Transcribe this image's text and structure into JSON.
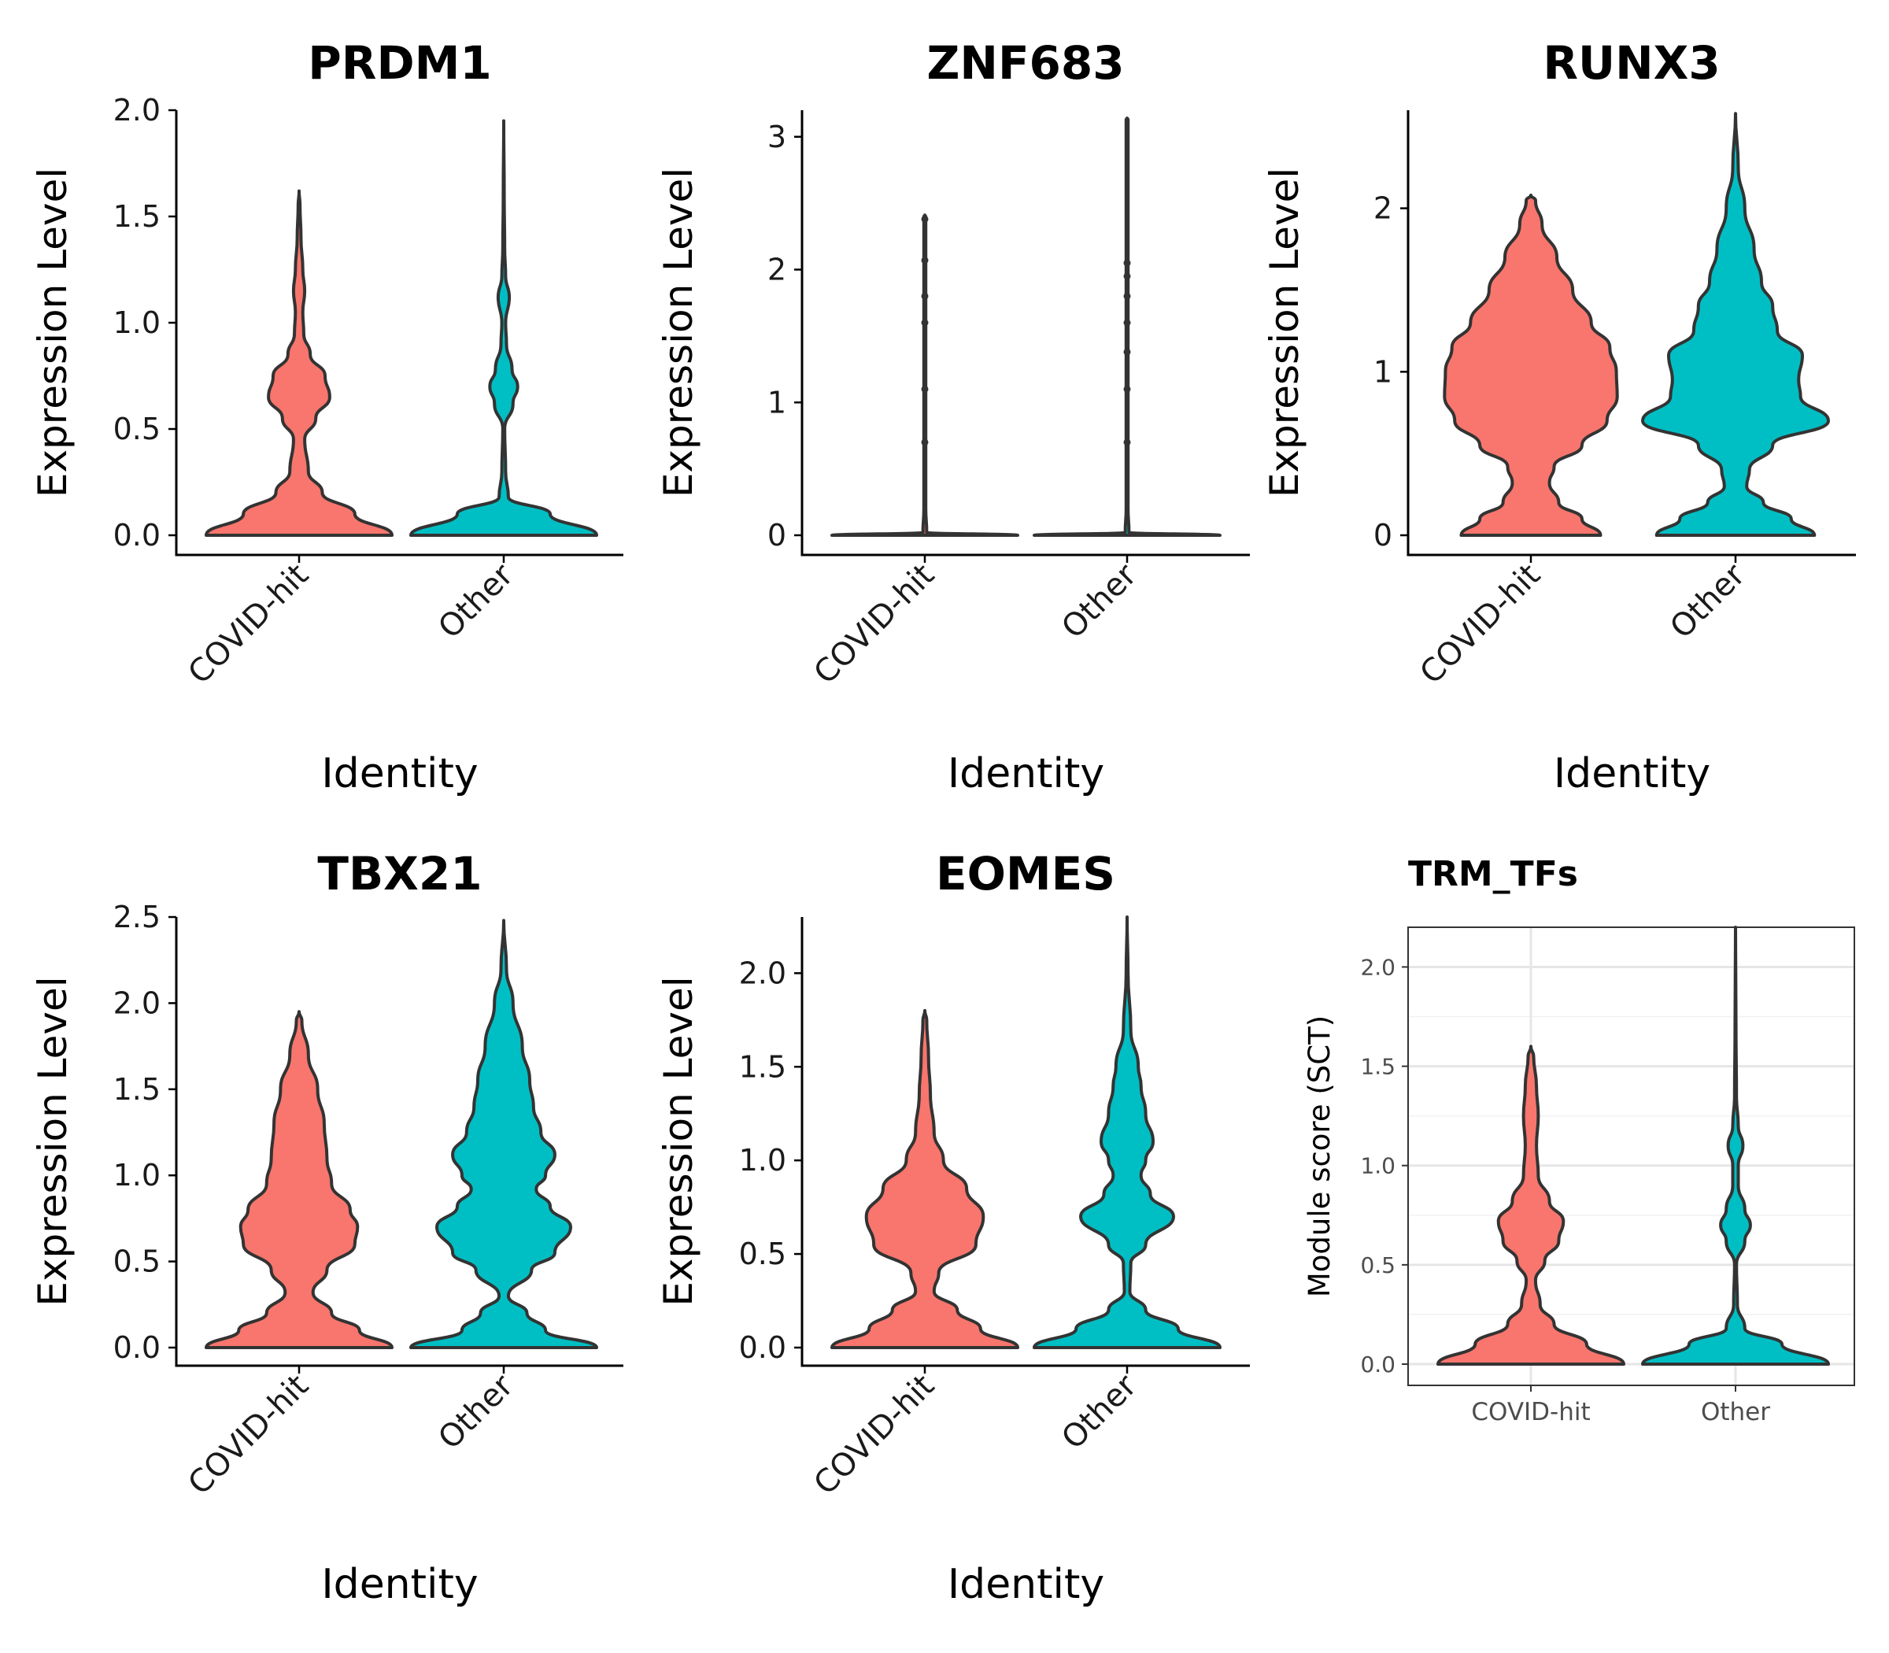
{
  "colors": {
    "covid_hit": "#F8766D",
    "other": "#00BFC4",
    "outline": "#333333"
  },
  "chart_data": [
    {
      "type": "violin",
      "title": "PRDM1",
      "xlabel": "Identity",
      "ylabel": "Expression Level",
      "ylim": [
        0,
        2.0
      ],
      "yticks": [
        "0.0",
        "0.5",
        "1.0",
        "1.5",
        "2.0"
      ],
      "categories": [
        "COVID-hit",
        "Other"
      ],
      "series": [
        {
          "category": "COVID-hit",
          "density": [
            [
              0.0,
              1.0
            ],
            [
              0.1,
              0.6
            ],
            [
              0.2,
              0.25
            ],
            [
              0.3,
              0.1
            ],
            [
              0.45,
              0.06
            ],
            [
              0.55,
              0.18
            ],
            [
              0.65,
              0.33
            ],
            [
              0.75,
              0.28
            ],
            [
              0.85,
              0.12
            ],
            [
              0.95,
              0.05
            ],
            [
              1.05,
              0.04
            ],
            [
              1.15,
              0.06
            ],
            [
              1.25,
              0.04
            ],
            [
              1.4,
              0.02
            ],
            [
              1.55,
              0.01
            ],
            [
              1.62,
              0.0
            ]
          ]
        },
        {
          "category": "Other",
          "density": [
            [
              0.0,
              1.0
            ],
            [
              0.1,
              0.5
            ],
            [
              0.18,
              0.05
            ],
            [
              0.3,
              0.02
            ],
            [
              0.5,
              0.01
            ],
            [
              0.62,
              0.1
            ],
            [
              0.7,
              0.15
            ],
            [
              0.78,
              0.09
            ],
            [
              0.9,
              0.03
            ],
            [
              1.0,
              0.02
            ],
            [
              1.12,
              0.06
            ],
            [
              1.22,
              0.02
            ],
            [
              1.35,
              0.01
            ],
            [
              1.6,
              0.005
            ],
            [
              1.95,
              0.0
            ]
          ]
        }
      ]
    },
    {
      "type": "violin",
      "title": "ZNF683",
      "xlabel": "Identity",
      "ylabel": "Expression Level",
      "ylim": [
        0,
        3.2
      ],
      "yticks": [
        "0",
        "1",
        "2",
        "3"
      ],
      "categories": [
        "COVID-hit",
        "Other"
      ],
      "series": [
        {
          "category": "COVID-hit",
          "density": [
            [
              0.0,
              1.0
            ],
            [
              0.02,
              0.02
            ],
            [
              0.2,
              0.01
            ],
            [
              2.4,
              0.01
            ],
            [
              2.41,
              0.0
            ]
          ]
        },
        {
          "category": "Other",
          "density": [
            [
              0.0,
              1.0
            ],
            [
              0.02,
              0.02
            ],
            [
              0.2,
              0.01
            ],
            [
              3.13,
              0.01
            ],
            [
              3.14,
              0.0
            ]
          ]
        }
      ]
    },
    {
      "type": "violin",
      "title": "RUNX3",
      "xlabel": "Identity",
      "ylabel": "Expression Level",
      "ylim": [
        0,
        2.6
      ],
      "yticks": [
        "0",
        "1",
        "2"
      ],
      "categories": [
        "COVID-hit",
        "Other"
      ],
      "series": [
        {
          "category": "COVID-hit",
          "density": [
            [
              0.0,
              0.75
            ],
            [
              0.1,
              0.55
            ],
            [
              0.2,
              0.3
            ],
            [
              0.32,
              0.2
            ],
            [
              0.42,
              0.25
            ],
            [
              0.55,
              0.55
            ],
            [
              0.7,
              0.82
            ],
            [
              0.85,
              0.93
            ],
            [
              1.0,
              0.92
            ],
            [
              1.15,
              0.85
            ],
            [
              1.3,
              0.65
            ],
            [
              1.5,
              0.45
            ],
            [
              1.7,
              0.28
            ],
            [
              1.9,
              0.12
            ],
            [
              2.05,
              0.05
            ],
            [
              2.08,
              0.0
            ]
          ]
        },
        {
          "category": "Other",
          "density": [
            [
              0.0,
              0.85
            ],
            [
              0.1,
              0.6
            ],
            [
              0.2,
              0.3
            ],
            [
              0.3,
              0.12
            ],
            [
              0.4,
              0.15
            ],
            [
              0.55,
              0.4
            ],
            [
              0.7,
              1.0
            ],
            [
              0.85,
              0.7
            ],
            [
              0.95,
              0.68
            ],
            [
              1.1,
              0.72
            ],
            [
              1.25,
              0.45
            ],
            [
              1.4,
              0.4
            ],
            [
              1.55,
              0.28
            ],
            [
              1.75,
              0.2
            ],
            [
              2.0,
              0.1
            ],
            [
              2.25,
              0.03
            ],
            [
              2.58,
              0.0
            ]
          ]
        }
      ]
    },
    {
      "type": "violin",
      "title": "TBX21",
      "xlabel": "Identity",
      "ylabel": "Expression Level",
      "ylim": [
        0,
        2.5
      ],
      "yticks": [
        "0.0",
        "0.5",
        "1.0",
        "1.5",
        "2.0",
        "2.5"
      ],
      "categories": [
        "COVID-hit",
        "Other"
      ],
      "series": [
        {
          "category": "COVID-hit",
          "density": [
            [
              0.0,
              1.0
            ],
            [
              0.1,
              0.65
            ],
            [
              0.2,
              0.35
            ],
            [
              0.32,
              0.15
            ],
            [
              0.45,
              0.3
            ],
            [
              0.6,
              0.6
            ],
            [
              0.7,
              0.63
            ],
            [
              0.8,
              0.55
            ],
            [
              0.95,
              0.35
            ],
            [
              1.1,
              0.3
            ],
            [
              1.3,
              0.27
            ],
            [
              1.5,
              0.2
            ],
            [
              1.7,
              0.1
            ],
            [
              1.9,
              0.03
            ],
            [
              1.95,
              0.0
            ]
          ]
        },
        {
          "category": "Other",
          "density": [
            [
              0.0,
              1.0
            ],
            [
              0.1,
              0.45
            ],
            [
              0.2,
              0.25
            ],
            [
              0.3,
              0.05
            ],
            [
              0.45,
              0.3
            ],
            [
              0.55,
              0.55
            ],
            [
              0.7,
              0.72
            ],
            [
              0.82,
              0.5
            ],
            [
              0.92,
              0.35
            ],
            [
              1.0,
              0.45
            ],
            [
              1.12,
              0.55
            ],
            [
              1.25,
              0.4
            ],
            [
              1.4,
              0.32
            ],
            [
              1.55,
              0.28
            ],
            [
              1.75,
              0.2
            ],
            [
              2.0,
              0.1
            ],
            [
              2.2,
              0.03
            ],
            [
              2.48,
              0.0
            ]
          ]
        }
      ]
    },
    {
      "type": "violin",
      "title": "EOMES",
      "xlabel": "Identity",
      "ylabel": "Expression Level",
      "ylim": [
        0,
        2.3
      ],
      "yticks": [
        "0.0",
        "0.5",
        "1.0",
        "1.5",
        "2.0"
      ],
      "categories": [
        "COVID-hit",
        "Other"
      ],
      "series": [
        {
          "category": "COVID-hit",
          "density": [
            [
              0.0,
              1.0
            ],
            [
              0.1,
              0.6
            ],
            [
              0.2,
              0.35
            ],
            [
              0.3,
              0.1
            ],
            [
              0.4,
              0.15
            ],
            [
              0.55,
              0.55
            ],
            [
              0.7,
              0.63
            ],
            [
              0.85,
              0.45
            ],
            [
              1.0,
              0.2
            ],
            [
              1.15,
              0.1
            ],
            [
              1.35,
              0.06
            ],
            [
              1.55,
              0.04
            ],
            [
              1.75,
              0.02
            ],
            [
              1.8,
              0.0
            ]
          ]
        },
        {
          "category": "Other",
          "density": [
            [
              0.0,
              1.0
            ],
            [
              0.1,
              0.55
            ],
            [
              0.2,
              0.2
            ],
            [
              0.3,
              0.03
            ],
            [
              0.45,
              0.04
            ],
            [
              0.55,
              0.2
            ],
            [
              0.7,
              0.5
            ],
            [
              0.82,
              0.25
            ],
            [
              0.92,
              0.15
            ],
            [
              1.0,
              0.2
            ],
            [
              1.1,
              0.28
            ],
            [
              1.25,
              0.2
            ],
            [
              1.4,
              0.15
            ],
            [
              1.5,
              0.12
            ],
            [
              1.7,
              0.04
            ],
            [
              2.0,
              0.01
            ],
            [
              2.3,
              0.0
            ]
          ]
        }
      ]
    },
    {
      "type": "violin",
      "title": "TRM_TFs",
      "xlabel": "",
      "ylabel": "Module score (SCT)",
      "ylim": [
        0,
        2.2
      ],
      "yticks": [
        "0.0",
        "0.5",
        "1.0",
        "1.5",
        "2.0"
      ],
      "grid": true,
      "categories": [
        "COVID-hit",
        "Other"
      ],
      "series": [
        {
          "category": "COVID-hit",
          "density": [
            [
              0.0,
              1.0
            ],
            [
              0.1,
              0.6
            ],
            [
              0.2,
              0.25
            ],
            [
              0.3,
              0.1
            ],
            [
              0.42,
              0.05
            ],
            [
              0.52,
              0.15
            ],
            [
              0.62,
              0.3
            ],
            [
              0.72,
              0.35
            ],
            [
              0.82,
              0.2
            ],
            [
              0.95,
              0.08
            ],
            [
              1.1,
              0.06
            ],
            [
              1.25,
              0.08
            ],
            [
              1.4,
              0.06
            ],
            [
              1.55,
              0.03
            ],
            [
              1.6,
              0.0
            ]
          ]
        },
        {
          "category": "Other",
          "density": [
            [
              0.0,
              1.0
            ],
            [
              0.1,
              0.5
            ],
            [
              0.18,
              0.1
            ],
            [
              0.3,
              0.02
            ],
            [
              0.5,
              0.01
            ],
            [
              0.62,
              0.1
            ],
            [
              0.7,
              0.16
            ],
            [
              0.78,
              0.1
            ],
            [
              0.9,
              0.03
            ],
            [
              1.0,
              0.03
            ],
            [
              1.1,
              0.08
            ],
            [
              1.2,
              0.03
            ],
            [
              1.35,
              0.01
            ],
            [
              1.7,
              0.005
            ],
            [
              2.2,
              0.0
            ]
          ]
        }
      ]
    }
  ]
}
